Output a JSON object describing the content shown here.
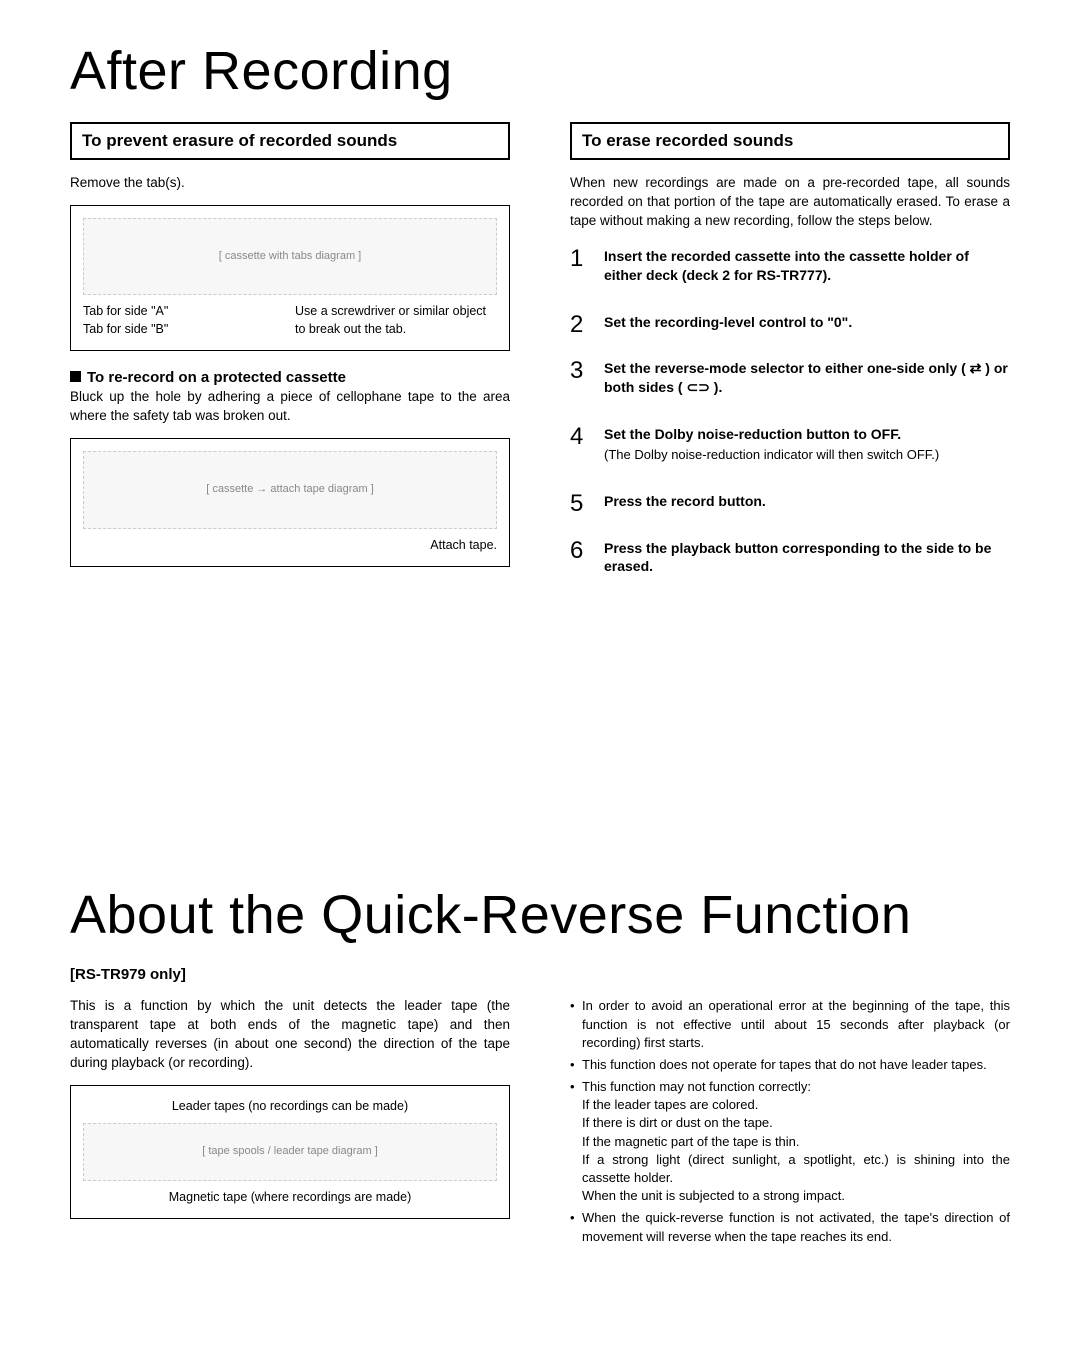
{
  "section1": {
    "title": "After Recording",
    "left": {
      "heading": "To prevent erasure of recorded sounds",
      "intro": "Remove the tab(s).",
      "fig1": {
        "labels": {
          "tab_a": "Tab for side \"A\"",
          "tab_b": "Tab for side \"B\"",
          "instr": "Use a screwdriver or similar object to break out the tab."
        }
      },
      "subheading": "To re-record on a protected cassette",
      "subtext": "Bluck up the hole by adhering a piece of cellophane tape to the area where the safety tab was broken out.",
      "fig2": {
        "label": "Attach tape."
      }
    },
    "right": {
      "heading": "To erase recorded sounds",
      "intro": "When new recordings are made on a pre-recorded tape, all sounds recorded on that portion of the tape are automatically erased. To erase a tape without making a new recording, follow the steps below.",
      "steps": [
        {
          "main": "Insert the recorded cassette into the cassette holder of either deck (deck 2 for RS-TR777)."
        },
        {
          "main": "Set the recording-level control to \"0\"."
        },
        {
          "main": "Set the reverse-mode selector to either one-side only ( ⇄ ) or both sides ( ⊂⊃ )."
        },
        {
          "main": "Set the Dolby noise-reduction button to OFF.",
          "sub": "(The Dolby noise-reduction indicator will then switch OFF.)"
        },
        {
          "main": "Press the record button."
        },
        {
          "main": "Press the playback button corresponding to the side to be erased."
        }
      ]
    }
  },
  "section2": {
    "title": "About the Quick-Reverse Function",
    "rs_only": "[RS-TR979 only]",
    "left": {
      "intro": "This is a function by which the unit detects the leader tape (the transparent tape at both ends of the magnetic tape) and then automatically reverses (in about one second) the direction of the tape during playback (or recording).",
      "fig": {
        "leader": "Leader tapes (no recordings can be made)",
        "magnetic": "Magnetic tape (where recordings are made)"
      }
    },
    "right": {
      "notes": [
        {
          "text": "In order to avoid an operational error at the beginning of the tape, this function is not effective until about 15 seconds after playback (or recording) first starts."
        },
        {
          "text": "This function does not operate for tapes that do not have leader tapes."
        },
        {
          "text": "This function may not function correctly:",
          "subs": [
            "If the leader tapes are colored.",
            "If there is dirt or dust on the tape.",
            "If the magnetic part of the tape is thin.",
            "If a strong light (direct sunlight, a spotlight, etc.) is shining into the cassette holder.",
            "When the unit is subjected to a strong impact."
          ]
        },
        {
          "text": "When the quick-reverse function is not activated, the tape's direction of movement will reverse when the tape reaches its end."
        }
      ]
    }
  }
}
